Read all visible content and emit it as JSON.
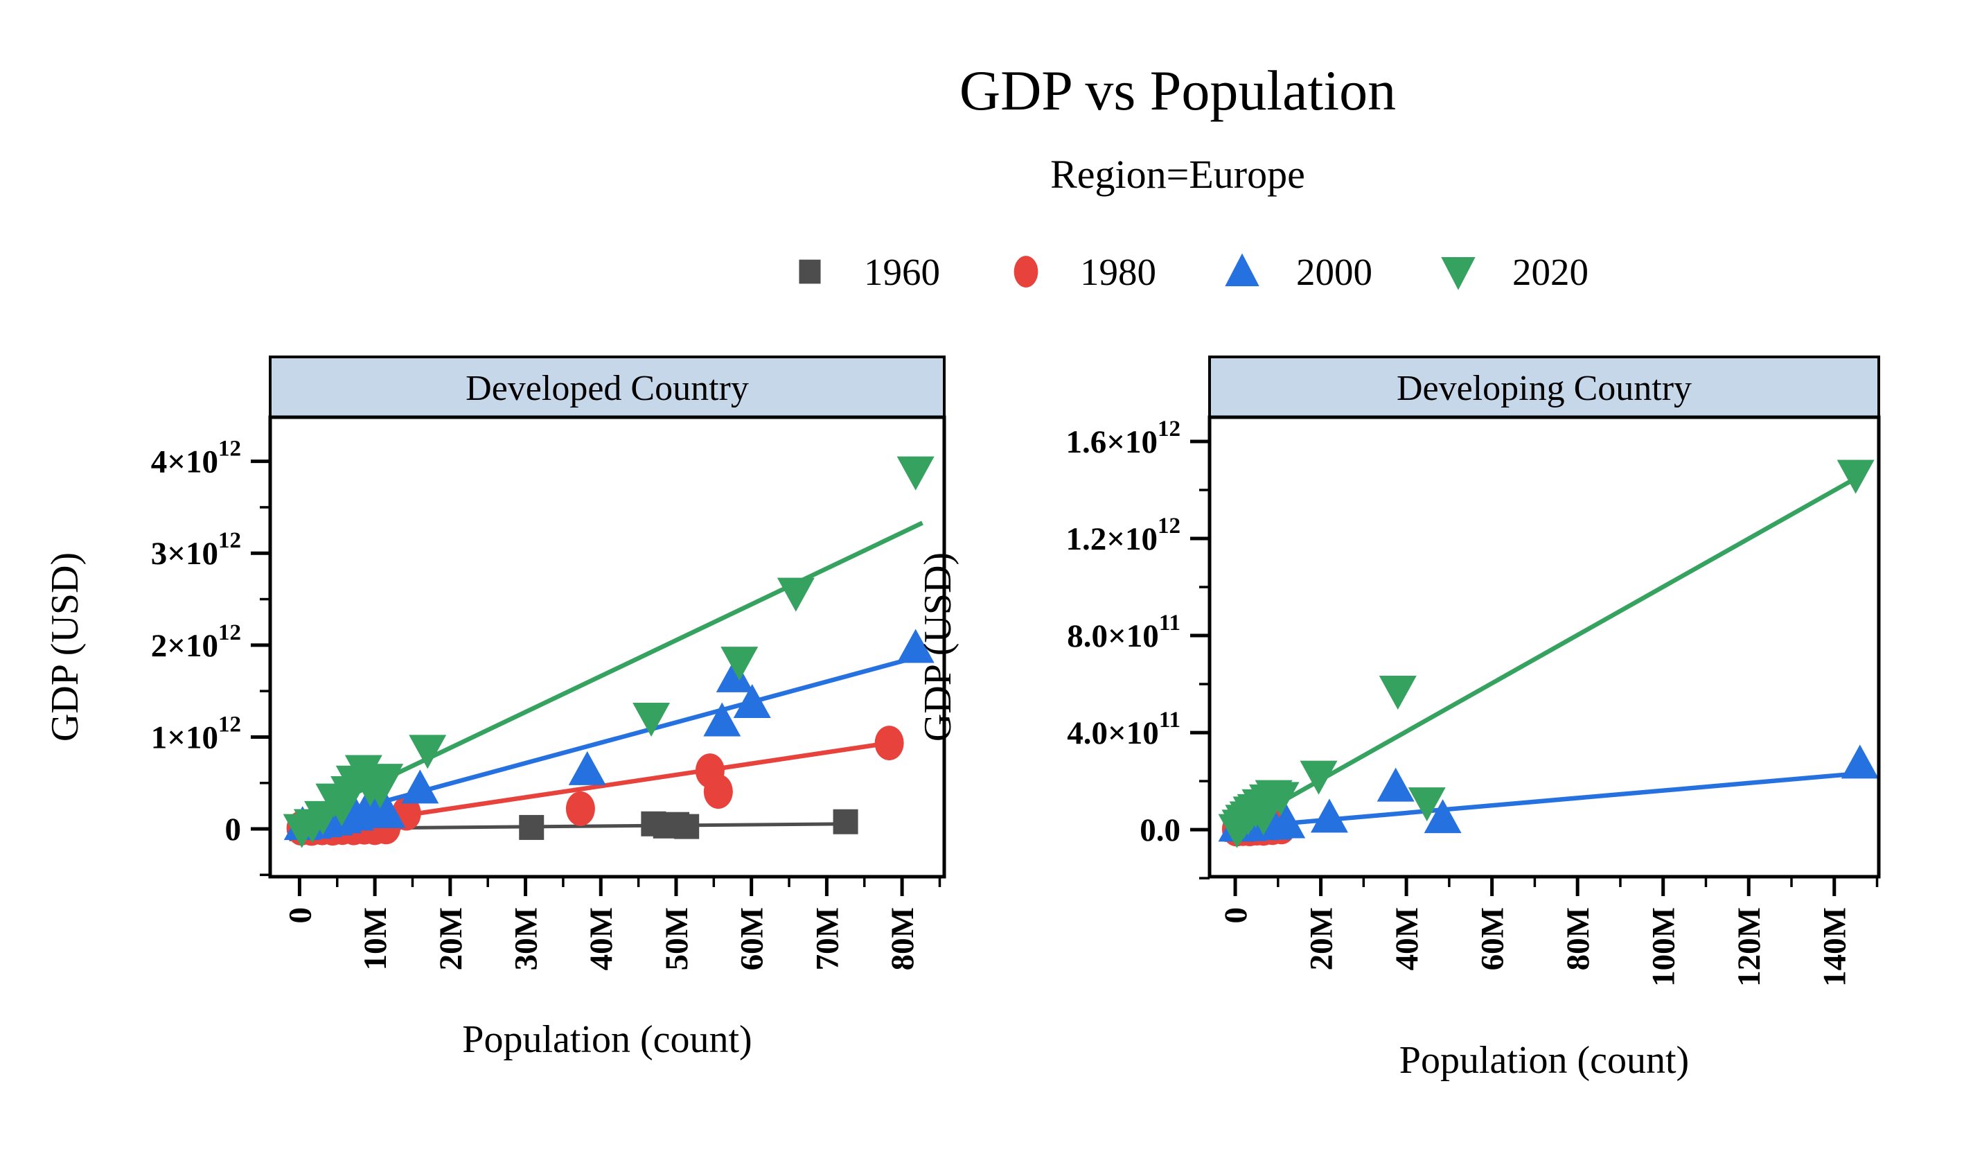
{
  "title": "GDP vs Population",
  "subtitle": "Region=Europe",
  "colors": {
    "1960": "#4d4d4d",
    "1980": "#e8423d",
    "2000": "#2671e0",
    "2020": "#35a35f",
    "header_bg": "#c6d7ea",
    "axis": "#000000"
  },
  "legend": [
    {
      "label": "1960",
      "marker": "square"
    },
    {
      "label": "1980",
      "marker": "circle"
    },
    {
      "label": "2000",
      "marker": "triangle-up"
    },
    {
      "label": "2020",
      "marker": "triangle-down"
    }
  ],
  "chart_data": [
    {
      "type": "scatter",
      "facet_title": "Developed Country",
      "xlabel": "Population (count)",
      "ylabel": "GDP (USD)",
      "x_unit": "millions of people",
      "y_unit": "billions of USD",
      "xlim": [
        -3.9,
        85.6
      ],
      "ylim": [
        -520,
        4480
      ],
      "x_major": [
        {
          "v": 0,
          "l": "0"
        },
        {
          "v": 10,
          "l": "10M"
        },
        {
          "v": 20,
          "l": "20M"
        },
        {
          "v": 30,
          "l": "30M"
        },
        {
          "v": 40,
          "l": "40M"
        },
        {
          "v": 50,
          "l": "50M"
        },
        {
          "v": 60,
          "l": "60M"
        },
        {
          "v": 70,
          "l": "70M"
        },
        {
          "v": 80,
          "l": "80M"
        }
      ],
      "x_minor": [
        5,
        15,
        25,
        35,
        45,
        55,
        65,
        75,
        85
      ],
      "y_major": [
        {
          "v": 0,
          "m": "0",
          "s": ""
        },
        {
          "v": 1000,
          "m": "1×10",
          "s": "12"
        },
        {
          "v": 2000,
          "m": "2×10",
          "s": "12"
        },
        {
          "v": 3000,
          "m": "3×10",
          "s": "12"
        },
        {
          "v": 4000,
          "m": "4×10",
          "s": "12"
        }
      ],
      "y_minor": [
        -500,
        500,
        1500,
        2500,
        3500
      ],
      "series": [
        {
          "name": "1960",
          "marker": "square",
          "lw": 5,
          "points": [
            [
              0.3,
              3
            ],
            [
              1.5,
              6
            ],
            [
              2.8,
              9
            ],
            [
              4.0,
              4
            ],
            [
              5.2,
              11
            ],
            [
              6.6,
              7
            ],
            [
              7.8,
              13
            ],
            [
              9.0,
              8
            ],
            [
              10.3,
              14
            ],
            [
              30.8,
              16
            ],
            [
              47.0,
              55
            ],
            [
              48.6,
              32
            ],
            [
              50.1,
              48
            ],
            [
              51.4,
              26
            ],
            [
              72.5,
              78
            ]
          ],
          "trend": [
            [
              0.3,
              2
            ],
            [
              73.0,
              55
            ]
          ]
        },
        {
          "name": "1980",
          "marker": "circle",
          "lw": 6.5,
          "points": [
            [
              0.2,
              8
            ],
            [
              1.6,
              5
            ],
            [
              3.0,
              11
            ],
            [
              4.4,
              7
            ],
            [
              5.7,
              14
            ],
            [
              7.2,
              11
            ],
            [
              8.6,
              18
            ],
            [
              10.0,
              13
            ],
            [
              11.5,
              21
            ],
            [
              14.2,
              170
            ],
            [
              37.3,
              220
            ],
            [
              54.5,
              633
            ],
            [
              55.6,
              407
            ],
            [
              78.3,
              935
            ]
          ],
          "trend": [
            [
              0.3,
              -20
            ],
            [
              78.3,
              935
            ]
          ]
        },
        {
          "name": "2000",
          "marker": "triangle-up",
          "lw": 6.5,
          "points": [
            [
              0.4,
              22
            ],
            [
              1.8,
              36
            ],
            [
              3.2,
              52
            ],
            [
              4.6,
              72
            ],
            [
              5.8,
              96
            ],
            [
              7.4,
              126
            ],
            [
              8.8,
              168
            ],
            [
              10.2,
              208
            ],
            [
              11.6,
              152
            ],
            [
              16.0,
              420
            ],
            [
              38.2,
              620
            ],
            [
              56.1,
              1150
            ],
            [
              57.8,
              1630
            ],
            [
              60.1,
              1350
            ],
            [
              81.8,
              1950
            ]
          ],
          "trend": [
            [
              0.4,
              60
            ],
            [
              82.5,
              1880
            ]
          ]
        },
        {
          "name": "2020",
          "marker": "triangle-down",
          "lw": 6.5,
          "points": [
            [
              0.3,
              18
            ],
            [
              1.7,
              72
            ],
            [
              3.1,
              160
            ],
            [
              4.6,
              350
            ],
            [
              5.6,
              255
            ],
            [
              6.6,
              430
            ],
            [
              7.3,
              545
            ],
            [
              8.5,
              660
            ],
            [
              9.4,
              470
            ],
            [
              10.7,
              450
            ],
            [
              11.3,
              565
            ],
            [
              17.0,
              880
            ],
            [
              46.7,
              1230
            ],
            [
              58.4,
              1840
            ],
            [
              65.9,
              2590
            ],
            [
              81.8,
              3910
            ]
          ],
          "trend": [
            [
              0.5,
              120
            ],
            [
              82.7,
              3330
            ]
          ]
        }
      ]
    },
    {
      "type": "scatter",
      "facet_title": "Developing Country",
      "xlabel": "Population (count)",
      "ylabel": "GDP (USD)",
      "x_unit": "millions of people",
      "y_unit": "billions of USD",
      "xlim": [
        -6.0,
        150.4
      ],
      "ylim": [
        -194,
        1700
      ],
      "x_major": [
        {
          "v": 0,
          "l": "0"
        },
        {
          "v": 20,
          "l": "20M"
        },
        {
          "v": 40,
          "l": "40M"
        },
        {
          "v": 60,
          "l": "60M"
        },
        {
          "v": 80,
          "l": "80M"
        },
        {
          "v": 100,
          "l": "100M"
        },
        {
          "v": 120,
          "l": "120M"
        },
        {
          "v": 140,
          "l": "140M"
        }
      ],
      "x_minor": [
        10,
        30,
        50,
        70,
        90,
        110,
        130,
        150
      ],
      "y_major": [
        {
          "v": 0,
          "m": "0.0",
          "s": ""
        },
        {
          "v": 400,
          "m": "4.0×10",
          "s": "11"
        },
        {
          "v": 800,
          "m": "8.0×10",
          "s": "11"
        },
        {
          "v": 1200,
          "m": "1.2×10",
          "s": "12"
        },
        {
          "v": 1600,
          "m": "1.6×10",
          "s": "12"
        }
      ],
      "y_minor": [
        -200,
        200,
        600,
        1000,
        1400
      ],
      "series": [
        {
          "name": "1960",
          "marker": "square",
          "lw": 5,
          "points": [
            [
              0.4,
              1
            ],
            [
              1.6,
              2
            ],
            [
              3.0,
              1.5
            ],
            [
              4.4,
              3
            ],
            [
              5.8,
              2.5
            ]
          ],
          "trend": [
            [
              0.4,
              1
            ],
            [
              6.0,
              3
            ]
          ]
        },
        {
          "name": "1980",
          "marker": "circle",
          "lw": 6.5,
          "points": [
            [
              0.3,
              2
            ],
            [
              1.8,
              4
            ],
            [
              3.4,
              3
            ],
            [
              5.0,
              6
            ],
            [
              6.6,
              5
            ],
            [
              8.7,
              8
            ],
            [
              10.8,
              11
            ]
          ],
          "trend": [
            [
              0.3,
              2
            ],
            [
              13.0,
              14
            ]
          ]
        },
        {
          "name": "2000",
          "marker": "triangle-up",
          "lw": 6.5,
          "points": [
            [
              0.4,
              5
            ],
            [
              1.6,
              9
            ],
            [
              3.0,
              7
            ],
            [
              4.4,
              13
            ],
            [
              5.8,
              11
            ],
            [
              7.2,
              16
            ],
            [
              8.7,
              13
            ],
            [
              12.0,
              19
            ],
            [
              22.0,
              42
            ],
            [
              37.5,
              170
            ],
            [
              48.5,
              40
            ],
            [
              146.0,
              265
            ]
          ],
          "trend": [
            [
              0.4,
              8
            ],
            [
              146.0,
              232
            ]
          ]
        },
        {
          "name": "2020",
          "marker": "triangle-down",
          "lw": 6.5,
          "points": [
            [
              0.4,
              10
            ],
            [
              1.2,
              28
            ],
            [
              2.0,
              48
            ],
            [
              3.0,
              62
            ],
            [
              3.8,
              82
            ],
            [
              4.8,
              92
            ],
            [
              5.9,
              112
            ],
            [
              6.6,
              62
            ],
            [
              7.6,
              132
            ],
            [
              9.0,
              150
            ],
            [
              10.6,
              142
            ],
            [
              19.5,
              230
            ],
            [
              38.0,
              580
            ],
            [
              44.8,
              120
            ],
            [
              145.0,
              1470
            ]
          ],
          "trend": [
            [
              1.5,
              22
            ],
            [
              145.2,
              1450
            ]
          ]
        }
      ]
    }
  ]
}
